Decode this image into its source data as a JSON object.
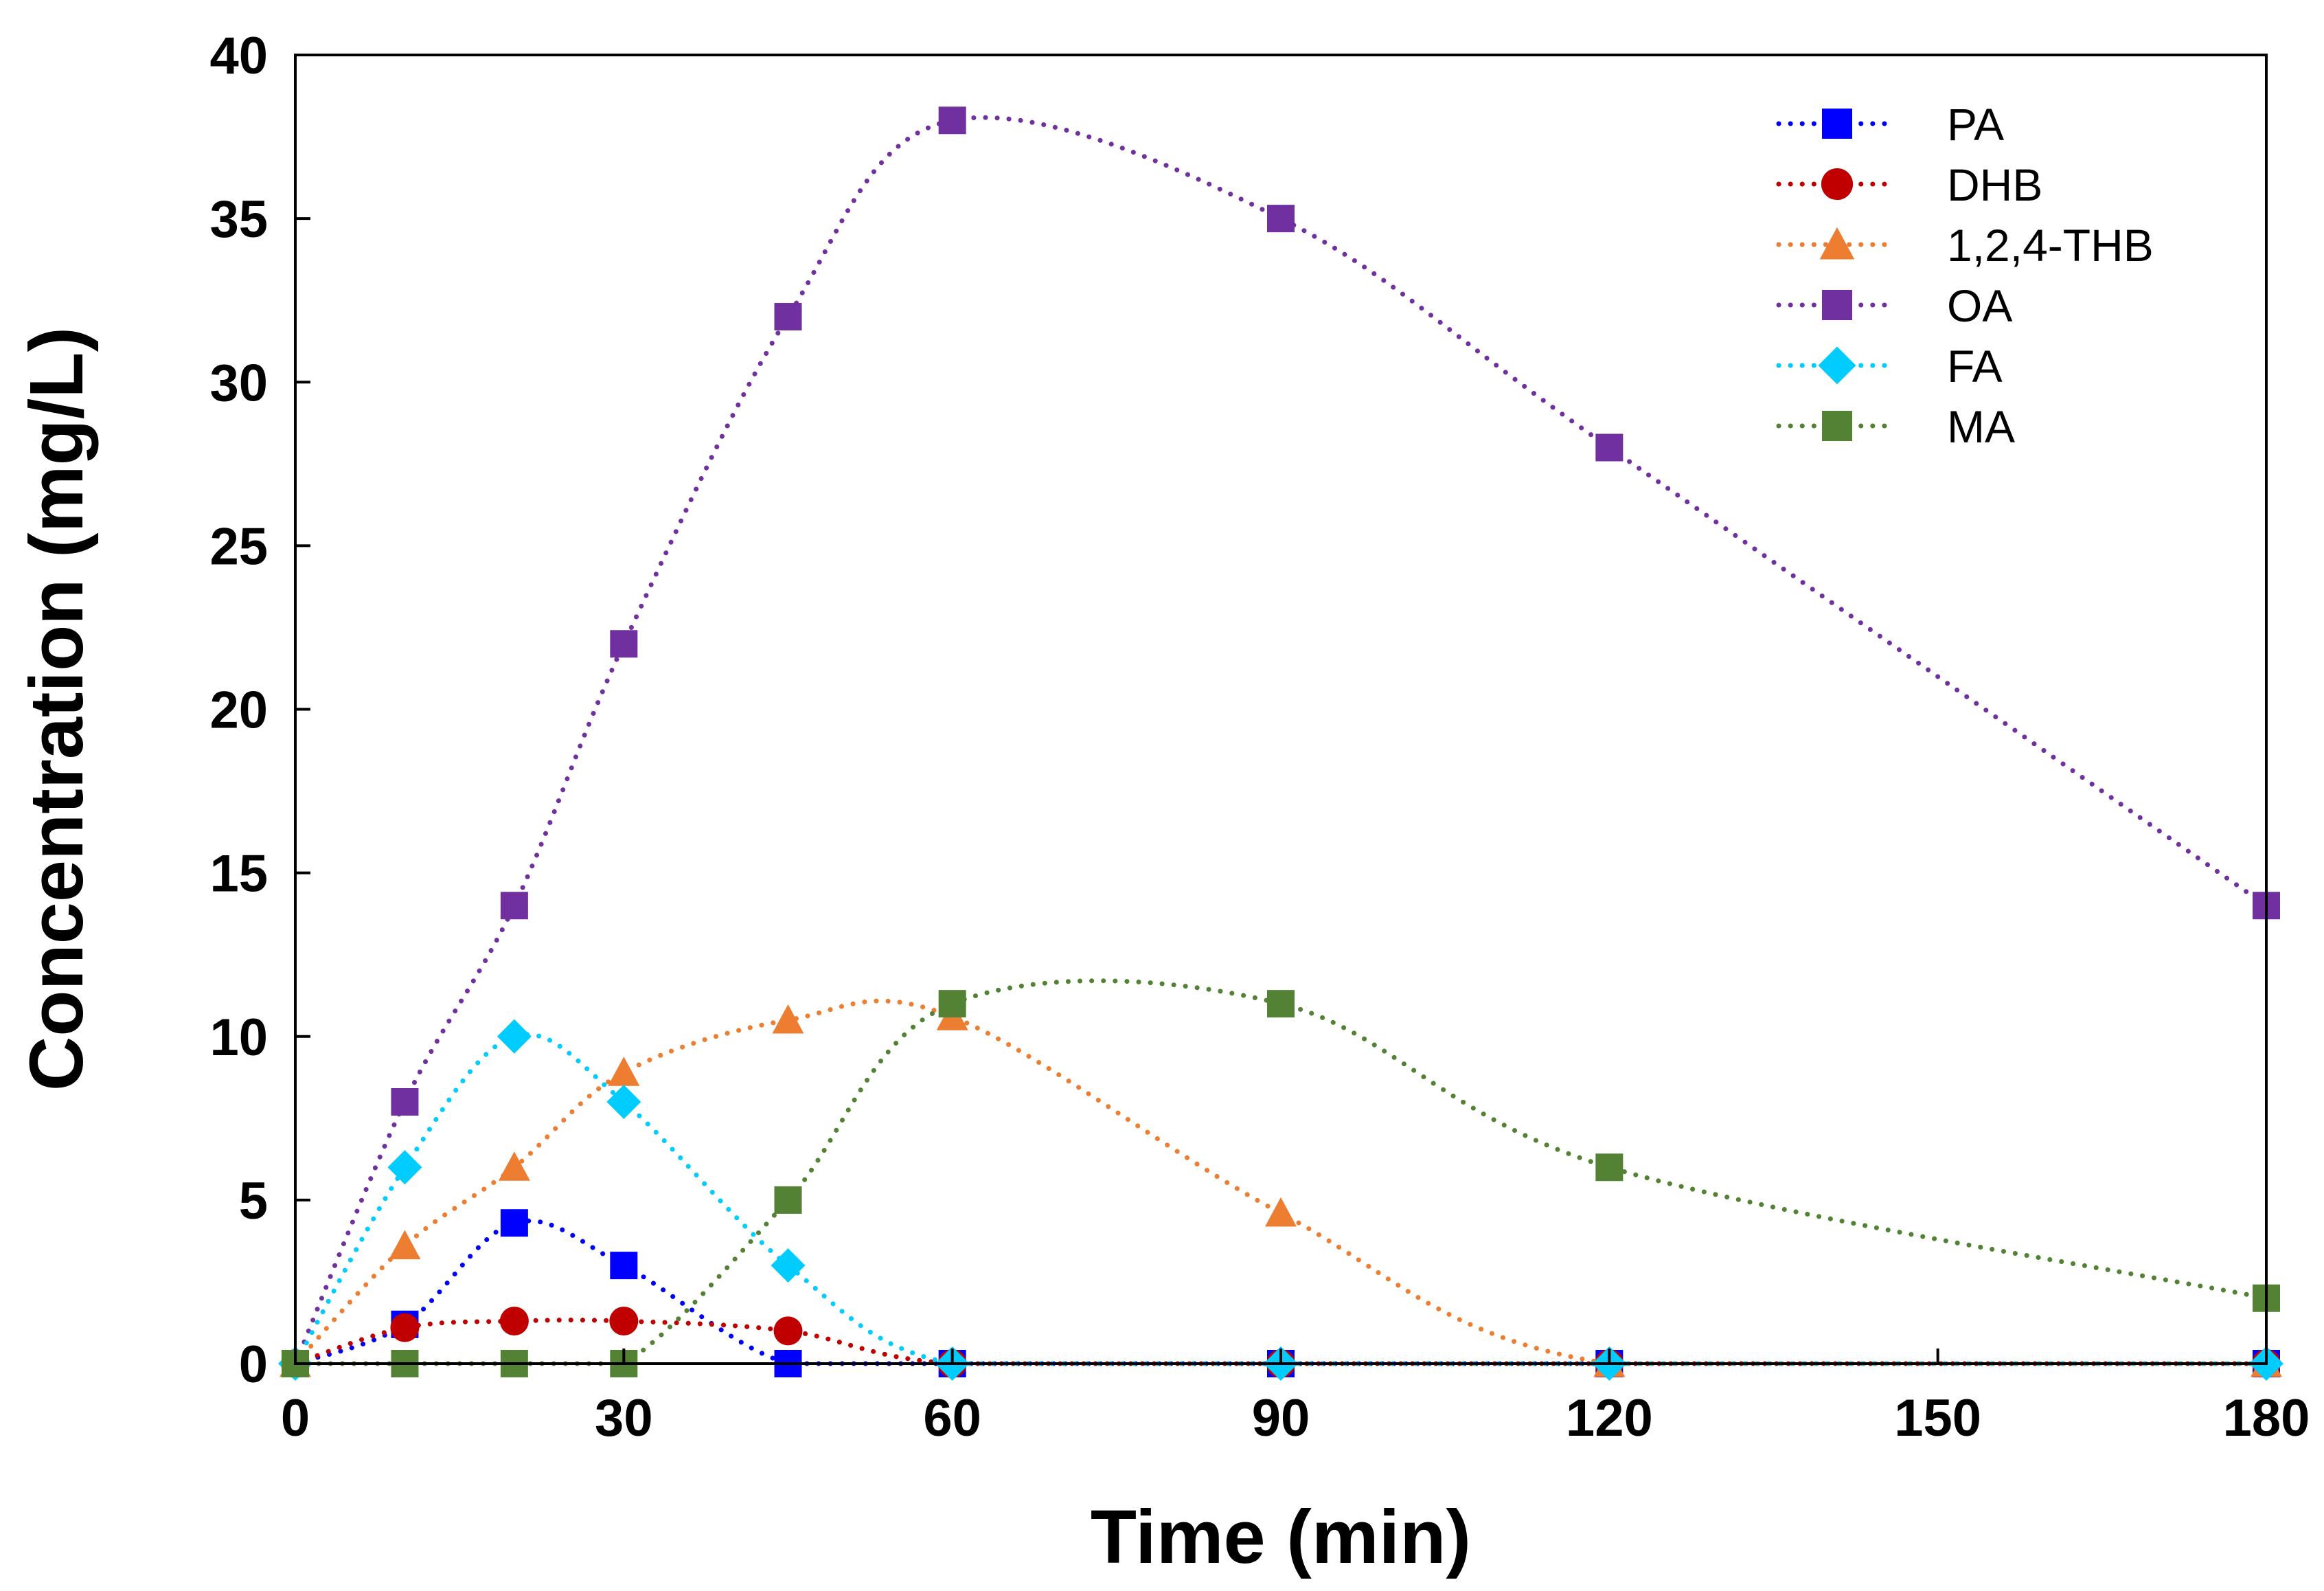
{
  "chart_data": {
    "type": "line",
    "title": "",
    "xlabel": "Time (min)",
    "ylabel": "Concentration (mg/L)",
    "xlim": [
      0,
      180
    ],
    "ylim": [
      0,
      40
    ],
    "xticks": [
      0,
      30,
      60,
      90,
      120,
      150,
      180
    ],
    "yticks": [
      0,
      5,
      10,
      15,
      20,
      25,
      30,
      35,
      40
    ],
    "grid": false,
    "legend_position": "top-right",
    "line_style": "dotted smoothed",
    "series": [
      {
        "name": "PA",
        "color": "#0000FF",
        "marker": "square",
        "x": [
          0,
          10,
          20,
          30,
          45,
          60,
          90,
          120,
          180
        ],
        "y": [
          0,
          1.2,
          4.3,
          3.0,
          0,
          0,
          0,
          0,
          0
        ]
      },
      {
        "name": "DHB",
        "color": "#C00000",
        "marker": "circle",
        "x": [
          0,
          10,
          20,
          30,
          45,
          60,
          90,
          120,
          180
        ],
        "y": [
          0,
          1.1,
          1.3,
          1.3,
          1.0,
          0,
          0,
          0,
          0
        ]
      },
      {
        "name": "1,2,4-THB",
        "color": "#ED7D31",
        "marker": "triangle",
        "x": [
          0,
          10,
          20,
          30,
          45,
          60,
          90,
          120,
          180
        ],
        "y": [
          0,
          3.6,
          6.0,
          8.9,
          10.5,
          10.6,
          4.6,
          0,
          0
        ]
      },
      {
        "name": "OA",
        "color": "#7030A0",
        "marker": "square",
        "x": [
          0,
          10,
          20,
          30,
          45,
          60,
          90,
          120,
          180
        ],
        "y": [
          0,
          8,
          14,
          22,
          32,
          38,
          35,
          28,
          14
        ]
      },
      {
        "name": "FA",
        "color": "#00CCFF",
        "marker": "diamond",
        "x": [
          0,
          10,
          20,
          30,
          45,
          60,
          90,
          120,
          180
        ],
        "y": [
          0,
          6,
          10,
          8,
          3,
          0,
          0,
          0,
          0
        ]
      },
      {
        "name": "MA",
        "color": "#548235",
        "marker": "square",
        "x": [
          0,
          10,
          20,
          30,
          45,
          60,
          90,
          120,
          180
        ],
        "y": [
          0,
          0,
          0,
          0,
          5,
          11,
          11,
          6,
          2
        ]
      }
    ]
  }
}
